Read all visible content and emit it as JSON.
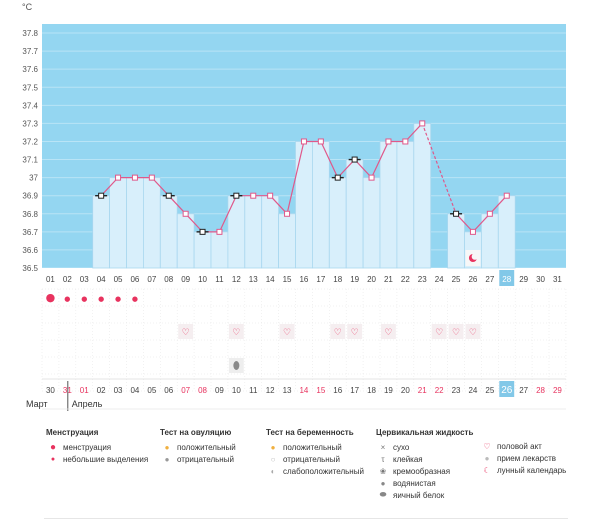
{
  "chart_data": {
    "type": "bar",
    "title": "",
    "ylabel": "°C",
    "ylim": [
      36.5,
      37.85
    ],
    "yticks": [
      "37.8",
      "37.7",
      "37.6",
      "37.5",
      "37.4",
      "37.3",
      "37.2",
      "37.1",
      "37",
      "36.9",
      "36.8",
      "36.7",
      "36.6",
      "36.5"
    ],
    "ytick_values": [
      37.8,
      37.7,
      37.6,
      37.5,
      37.4,
      37.3,
      37.2,
      37.1,
      37.0,
      36.9,
      36.8,
      36.7,
      36.6,
      36.5
    ],
    "cycle_days": [
      "01",
      "02",
      "03",
      "04",
      "05",
      "06",
      "07",
      "08",
      "09",
      "10",
      "11",
      "12",
      "13",
      "14",
      "15",
      "16",
      "17",
      "18",
      "19",
      "20",
      "21",
      "22",
      "23",
      "24",
      "25",
      "26",
      "27",
      "28",
      "29",
      "30",
      "31"
    ],
    "current_cycle_day": "28",
    "values": [
      null,
      null,
      null,
      36.9,
      37.0,
      37.0,
      37.0,
      36.9,
      36.8,
      36.7,
      36.7,
      36.9,
      36.9,
      36.9,
      36.8,
      37.2,
      37.2,
      37.0,
      37.1,
      37.0,
      37.2,
      37.2,
      37.3,
      null,
      36.8,
      36.7,
      36.8,
      36.9,
      null,
      null,
      null
    ],
    "marker_types": [
      null,
      null,
      null,
      "black",
      "pink",
      "pink",
      "pink",
      "black",
      "pink",
      "black",
      "pink",
      "black",
      "pink",
      "pink",
      "pink",
      "pink",
      "pink",
      "black",
      "black",
      "pink",
      "pink",
      "pink",
      "pink",
      null,
      "black",
      "pink",
      "pink",
      "pink",
      null,
      null,
      null
    ],
    "dashed_segment": [
      "23",
      "25"
    ],
    "date_labels": [
      "30",
      "31",
      "01",
      "02",
      "03",
      "04",
      "05",
      "06",
      "07",
      "08",
      "09",
      "10",
      "11",
      "12",
      "13",
      "14",
      "15",
      "16",
      "17",
      "18",
      "19",
      "20",
      "21",
      "22",
      "23",
      "24",
      "25",
      "26",
      "27",
      "28",
      "29"
    ],
    "date_red": [
      false,
      true,
      true,
      false,
      false,
      false,
      false,
      false,
      true,
      true,
      false,
      false,
      false,
      false,
      false,
      true,
      true,
      false,
      false,
      false,
      false,
      false,
      true,
      true,
      false,
      false,
      false,
      false,
      false,
      true,
      true
    ],
    "current_date": "26",
    "months": [
      "Март",
      "Апрель"
    ],
    "menstruation": [
      "heavy",
      "light",
      "light",
      "light",
      "light",
      "light",
      null,
      null,
      null,
      null,
      null,
      null,
      null,
      null,
      null,
      null,
      null,
      null,
      null,
      null,
      null,
      null,
      null,
      null,
      null,
      null,
      null,
      null,
      null,
      null,
      null
    ],
    "intercourse_days": [
      "09",
      "12",
      "15",
      "18",
      "19",
      "21",
      "24",
      "25",
      "26"
    ],
    "egg_white_day": "12",
    "moon_day": "26",
    "colors": {
      "chart_bg": "#94d6f1",
      "bar_fill": "#d8effb",
      "bar_edge": "#a9d7ef",
      "line": "#e0588a",
      "current_day": "#82c8e8",
      "red_text": "#e8335f"
    }
  },
  "legend": {
    "menstruation": {
      "title": "Менструация",
      "items": [
        "менструация",
        "небольшие выделения"
      ]
    },
    "ovulation_test": {
      "title": "Тест на овуляцию",
      "items": [
        "положительный",
        "отрицательный"
      ]
    },
    "pregnancy_test": {
      "title": "Тест на беременность",
      "items": [
        "положительный",
        "отрицательный",
        "слабоположительный"
      ]
    },
    "cervical_fluid": {
      "title": "Цервикальная жидкость",
      "items": [
        "сухо",
        "клейкая",
        "кремообразная",
        "водянистая",
        "яичный белок"
      ]
    },
    "other": {
      "items": [
        "половой акт",
        "прием лекарств",
        "лунный календарь"
      ]
    }
  }
}
